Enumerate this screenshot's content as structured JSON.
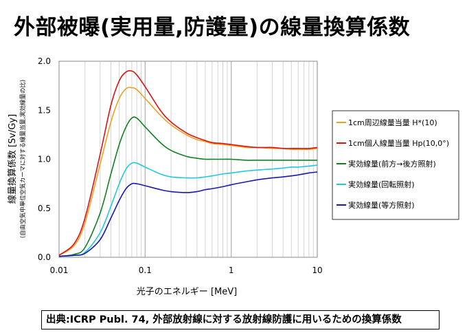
{
  "title": "外部被曝(実用量,防護量)の線量換算係数",
  "source": "出典:ICRP Publ. 74, 外部放射線に対する放射線防護に用いるための換算係数",
  "chart_data": {
    "type": "line",
    "title": "外部被曝(実用量,防護量)の線量換算係数",
    "xlabel": "光子のエネルギー [MeV]",
    "ylabel": "線量換算係数 [Sv/Gy]",
    "ylabel_sub": "(自由空気中単位空気カーマに対する線量当量,実効線量の比)",
    "xscale": "log",
    "xlim": [
      0.01,
      10
    ],
    "ylim": [
      0.0,
      2.0
    ],
    "xticks": [
      0.01,
      0.1,
      1,
      10
    ],
    "xtick_labels": [
      "0.01",
      "0.1",
      "1",
      "10"
    ],
    "yticks": [
      0.0,
      0.5,
      1.0,
      1.5,
      2.0
    ],
    "ytick_labels": [
      "0.0",
      "0.5",
      "1.0",
      "1.5",
      "2.0"
    ],
    "grid": "vertical-log-minor",
    "legend_position": "right",
    "series": [
      {
        "name": "1cm周辺線量当量 H*(10)",
        "color": "#f0a020",
        "x": [
          0.01,
          0.015,
          0.02,
          0.03,
          0.04,
          0.05,
          0.06,
          0.07,
          0.08,
          0.1,
          0.15,
          0.2,
          0.3,
          0.4,
          0.5,
          0.6,
          0.8,
          1,
          1.5,
          2,
          3,
          4,
          5,
          6,
          8,
          10
        ],
        "y": [
          0.02,
          0.12,
          0.35,
          0.95,
          1.38,
          1.62,
          1.72,
          1.73,
          1.71,
          1.62,
          1.45,
          1.35,
          1.25,
          1.2,
          1.18,
          1.16,
          1.15,
          1.14,
          1.12,
          1.12,
          1.11,
          1.11,
          1.1,
          1.1,
          1.1,
          1.11
        ]
      },
      {
        "name": "1cm個人線量当量 Hp(10,0°)",
        "color": "#e01010",
        "x": [
          0.01,
          0.015,
          0.02,
          0.03,
          0.04,
          0.05,
          0.06,
          0.07,
          0.08,
          0.1,
          0.15,
          0.2,
          0.3,
          0.4,
          0.5,
          0.6,
          0.8,
          1,
          1.5,
          2,
          3,
          4,
          5,
          6,
          8,
          10
        ],
        "y": [
          0.02,
          0.14,
          0.4,
          1.05,
          1.55,
          1.8,
          1.89,
          1.9,
          1.86,
          1.74,
          1.5,
          1.38,
          1.27,
          1.22,
          1.19,
          1.17,
          1.16,
          1.15,
          1.13,
          1.12,
          1.12,
          1.11,
          1.11,
          1.11,
          1.11,
          1.12
        ]
      },
      {
        "name": "実効線量(前方→後方照射)",
        "color": "#108020",
        "x": [
          0.01,
          0.015,
          0.02,
          0.03,
          0.04,
          0.05,
          0.06,
          0.07,
          0.08,
          0.1,
          0.15,
          0.2,
          0.3,
          0.4,
          0.5,
          0.6,
          0.8,
          1,
          1.5,
          2,
          3,
          4,
          5,
          6,
          8,
          10
        ],
        "y": [
          0.01,
          0.03,
          0.1,
          0.45,
          0.85,
          1.15,
          1.33,
          1.42,
          1.42,
          1.33,
          1.17,
          1.09,
          1.03,
          1.01,
          1.0,
          1.0,
          1.0,
          1.0,
          0.99,
          0.99,
          0.99,
          0.99,
          0.99,
          0.99,
          0.99,
          0.99
        ]
      },
      {
        "name": "実効線量(回転照射)",
        "color": "#20c8e0",
        "x": [
          0.01,
          0.015,
          0.02,
          0.03,
          0.04,
          0.05,
          0.06,
          0.07,
          0.08,
          0.1,
          0.15,
          0.2,
          0.3,
          0.4,
          0.5,
          0.6,
          0.8,
          1,
          1.5,
          2,
          3,
          4,
          5,
          6,
          8,
          10
        ],
        "y": [
          0.01,
          0.02,
          0.05,
          0.25,
          0.52,
          0.75,
          0.9,
          0.96,
          0.96,
          0.92,
          0.85,
          0.82,
          0.81,
          0.81,
          0.82,
          0.83,
          0.85,
          0.86,
          0.88,
          0.89,
          0.9,
          0.91,
          0.92,
          0.92,
          0.93,
          0.94
        ]
      },
      {
        "name": "実効線量(等方照射)",
        "color": "#1818b0",
        "x": [
          0.01,
          0.015,
          0.02,
          0.03,
          0.04,
          0.05,
          0.06,
          0.07,
          0.08,
          0.1,
          0.15,
          0.2,
          0.3,
          0.4,
          0.5,
          0.6,
          0.8,
          1,
          1.5,
          2,
          3,
          4,
          5,
          6,
          8,
          10
        ],
        "y": [
          0.01,
          0.02,
          0.04,
          0.18,
          0.4,
          0.58,
          0.7,
          0.75,
          0.75,
          0.73,
          0.69,
          0.67,
          0.66,
          0.67,
          0.69,
          0.7,
          0.72,
          0.74,
          0.77,
          0.79,
          0.81,
          0.82,
          0.83,
          0.84,
          0.86,
          0.87
        ]
      }
    ]
  }
}
